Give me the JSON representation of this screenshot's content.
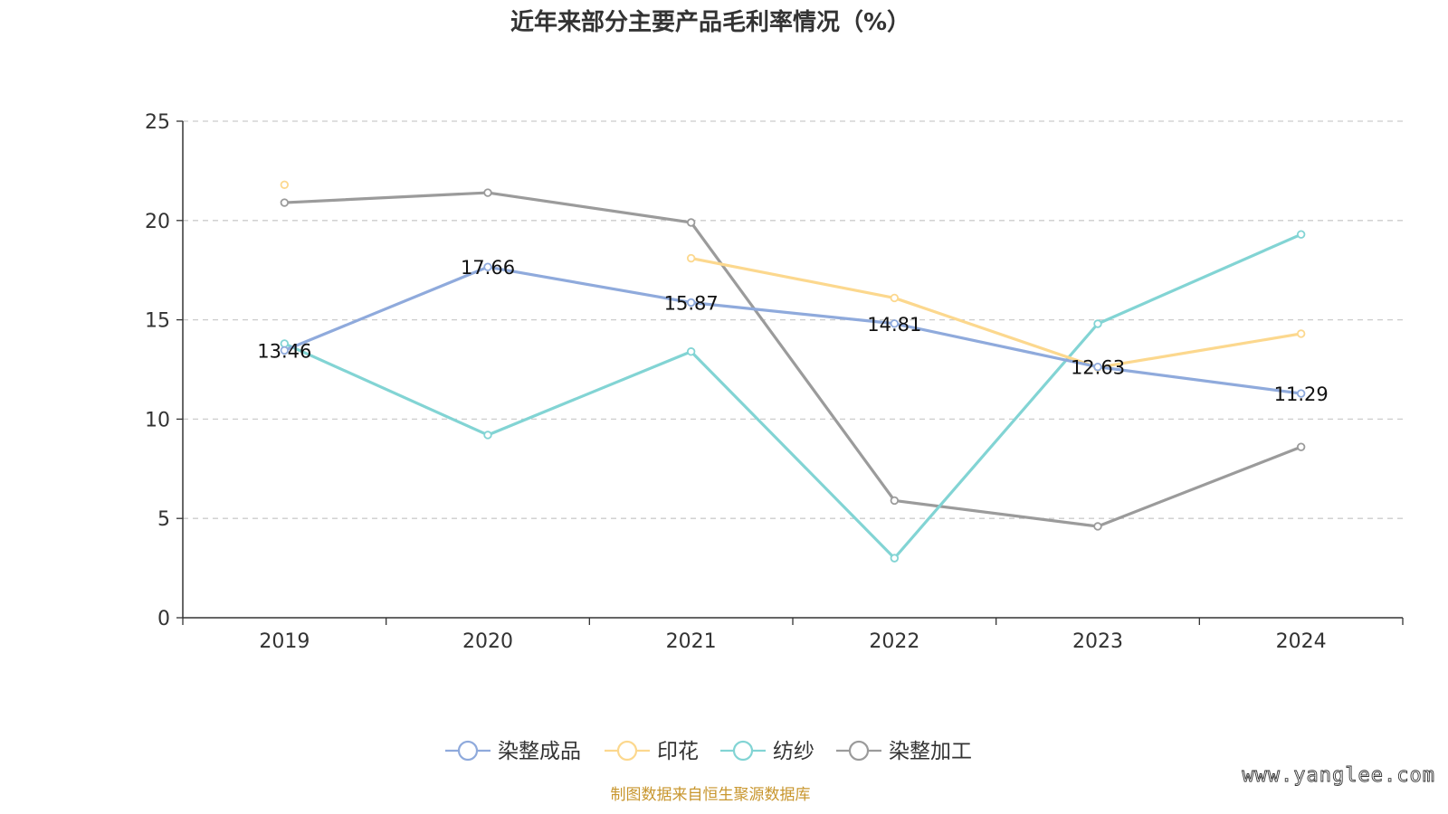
{
  "chart_data": {
    "type": "line",
    "title": "近年来部分主要产品毛利率情况（%）",
    "categories": [
      "2019",
      "2020",
      "2021",
      "2022",
      "2023",
      "2024"
    ],
    "ylim": [
      0,
      25
    ],
    "yticks": [
      0,
      5,
      10,
      15,
      20,
      25
    ],
    "grid": true,
    "legend_position": "bottom",
    "series": [
      {
        "name": "染整成品",
        "color": "#8faadc",
        "values": [
          13.46,
          17.66,
          15.87,
          14.81,
          12.63,
          11.29
        ],
        "labels": [
          "13.46",
          "17.66",
          "15.87",
          "14.81",
          "12.63",
          "11.29"
        ]
      },
      {
        "name": "印花",
        "color": "#fcd88e",
        "values": [
          21.8,
          null,
          18.1,
          16.1,
          12.6,
          14.3
        ]
      },
      {
        "name": "纺纱",
        "color": "#82d4d4",
        "values": [
          13.8,
          9.2,
          13.4,
          3.0,
          14.8,
          19.3
        ]
      },
      {
        "name": "染整加工",
        "color": "#9b9b9b",
        "values": [
          20.9,
          21.4,
          19.9,
          5.9,
          4.6,
          8.6
        ]
      }
    ]
  },
  "source": "制图数据来自恒生聚源数据库",
  "watermark": "www.yanglee.com"
}
